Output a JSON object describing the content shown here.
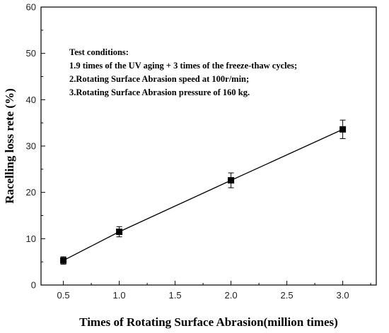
{
  "chart_data": {
    "type": "line",
    "title": "",
    "xlabel": "Times of Rotating Surface Abrasion(million times)",
    "ylabel": "Racelling loss rete (%)",
    "xlim": [
      0.3,
      3.3
    ],
    "ylim": [
      0,
      60
    ],
    "xticks": [
      "0.5",
      "1.0",
      "1.5",
      "2.0",
      "2.5",
      "3.0"
    ],
    "yticks": [
      "0",
      "10",
      "20",
      "30",
      "40",
      "50",
      "60"
    ],
    "grid": false,
    "series": [
      {
        "marker": "square",
        "color": "#000000",
        "x": [
          0.5,
          1.0,
          2.0,
          3.0
        ],
        "y": [
          5.3,
          11.5,
          22.6,
          33.6
        ],
        "error": [
          0.8,
          1.1,
          1.6,
          2.0
        ]
      }
    ],
    "annotation": {
      "lines": [
        "Test conditions:",
        "1.9 times of the UV aging + 3 times of the freeze-thaw cycles;",
        "2.Rotating Surface Abrasion speed at 100r/min;",
        "3.Rotating Surface Abrasion pressure of 160 kg."
      ]
    }
  }
}
